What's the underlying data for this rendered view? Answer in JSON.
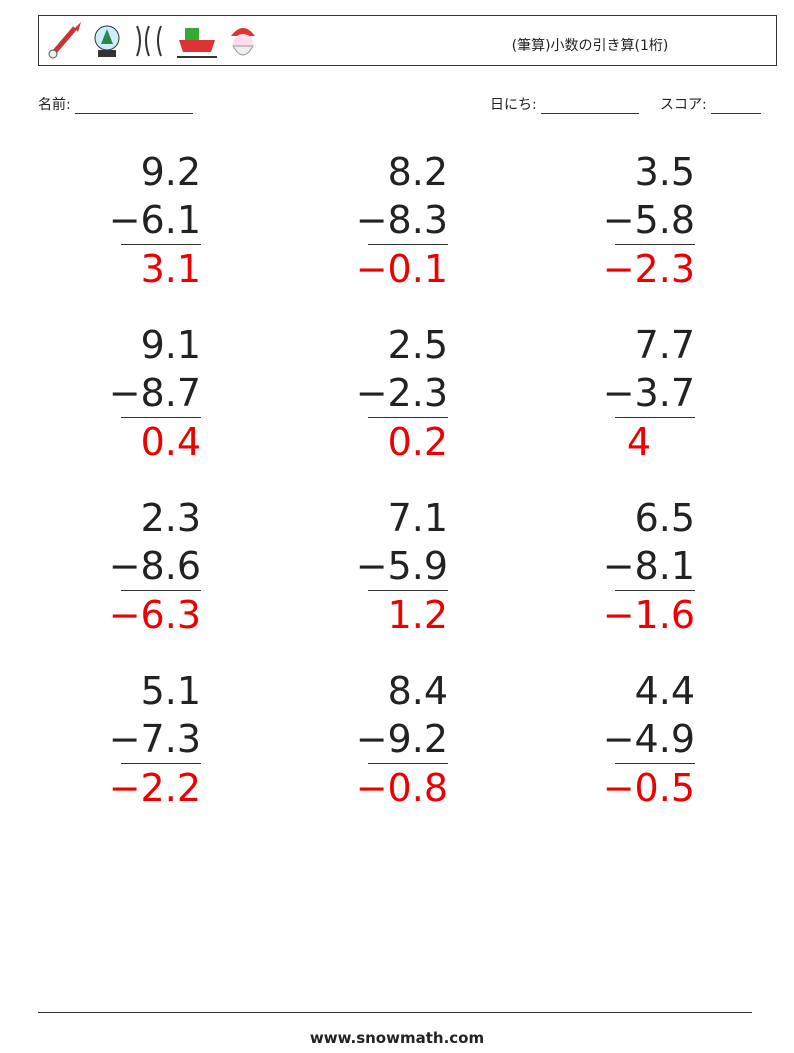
{
  "header": {
    "title": "(筆算)小数の引き算(1桁)"
  },
  "fields": {
    "name": "名前:",
    "date": "日にち:",
    "score": "スコア:"
  },
  "problems": [
    {
      "top": "9.2",
      "bottom": "−6.1",
      "answer": "3.1"
    },
    {
      "top": "8.2",
      "bottom": "−8.3",
      "answer": "−0.1"
    },
    {
      "top": "3.5",
      "bottom": "−5.8",
      "answer": "−2.3"
    },
    {
      "top": "9.1",
      "bottom": "−8.7",
      "answer": "0.4"
    },
    {
      "top": "2.5",
      "bottom": "−2.3",
      "answer": "0.2"
    },
    {
      "top": "7.7",
      "bottom": "−3.7",
      "answer": "4"
    },
    {
      "top": "2.3",
      "bottom": "−8.6",
      "answer": "−6.3"
    },
    {
      "top": "7.1",
      "bottom": "−5.9",
      "answer": "1.2"
    },
    {
      "top": "6.5",
      "bottom": "−8.1",
      "answer": "−1.6"
    },
    {
      "top": "5.1",
      "bottom": "−7.3",
      "answer": "−2.2"
    },
    {
      "top": "8.4",
      "bottom": "−9.2",
      "answer": "−0.8"
    },
    {
      "top": "4.4",
      "bottom": "−4.9",
      "answer": "−0.5"
    }
  ],
  "footer": {
    "site": "www.snowmath.com"
  }
}
